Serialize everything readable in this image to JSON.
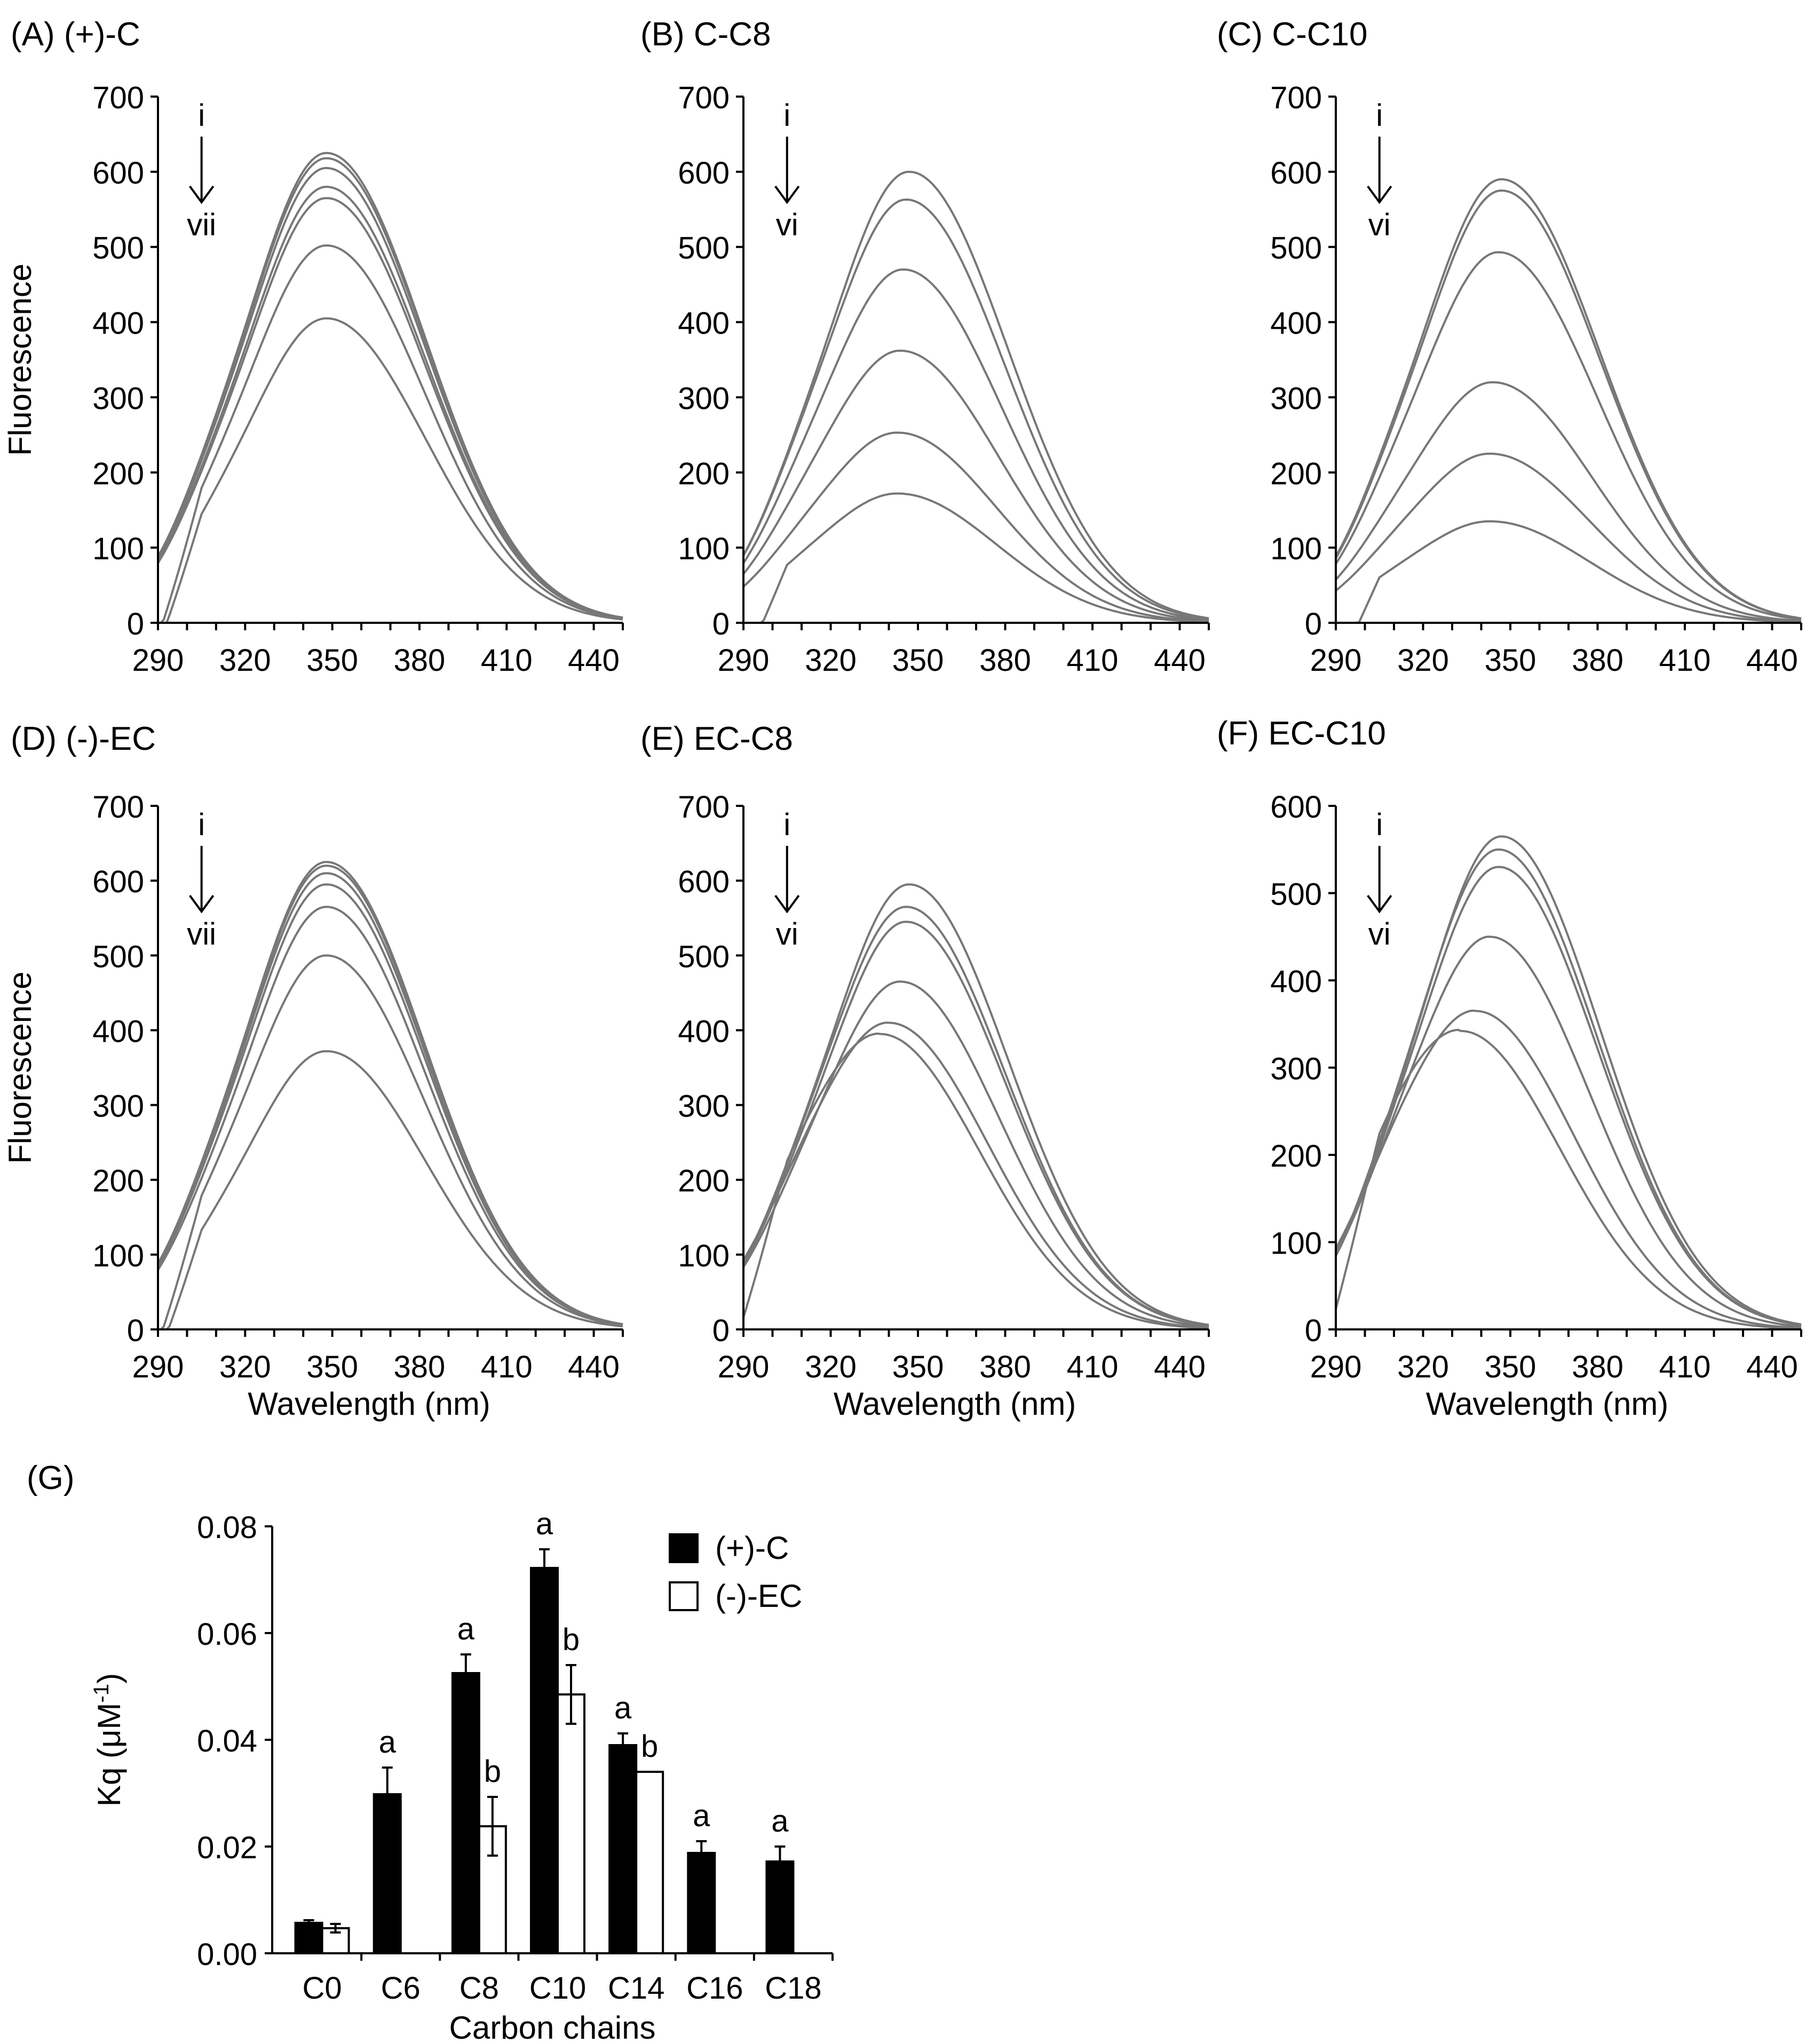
{
  "chart_data": [
    {
      "panel": "A",
      "type": "line",
      "title": "(A) (+)-C",
      "xlabel": "",
      "ylabel": "Fluorescence",
      "xlim": [
        290,
        450
      ],
      "ylim": [
        0,
        700
      ],
      "xticks": [
        290,
        320,
        350,
        380,
        410,
        440
      ],
      "yticks": [
        0,
        100,
        200,
        300,
        400,
        500,
        600,
        700
      ],
      "annotation": {
        "from": "i",
        "to": "vii"
      },
      "series": [
        {
          "peak_x": 348,
          "peak_y": 625
        },
        {
          "peak_x": 348,
          "peak_y": 618
        },
        {
          "peak_x": 348,
          "peak_y": 605
        },
        {
          "peak_x": 348,
          "peak_y": 580
        },
        {
          "peak_x": 348,
          "peak_y": 565
        },
        {
          "peak_x": 348,
          "peak_y": 502
        },
        {
          "peak_x": 348,
          "peak_y": 405
        }
      ]
    },
    {
      "panel": "B",
      "type": "line",
      "title": "(B) C-C8",
      "xlabel": "",
      "ylabel": "",
      "xlim": [
        290,
        450
      ],
      "ylim": [
        0,
        700
      ],
      "xticks": [
        290,
        320,
        350,
        380,
        410,
        440
      ],
      "yticks": [
        0,
        100,
        200,
        300,
        400,
        500,
        600,
        700
      ],
      "annotation": {
        "from": "i",
        "to": "vi"
      },
      "series": [
        {
          "peak_x": 347,
          "peak_y": 600
        },
        {
          "peak_x": 346,
          "peak_y": 563
        },
        {
          "peak_x": 345,
          "peak_y": 470
        },
        {
          "peak_x": 344,
          "peak_y": 362
        },
        {
          "peak_x": 343,
          "peak_y": 253
        },
        {
          "peak_x": 343,
          "peak_y": 172
        }
      ]
    },
    {
      "panel": "C",
      "type": "line",
      "title": "(C) C-C10",
      "xlabel": "",
      "ylabel": "",
      "xlim": [
        290,
        450
      ],
      "ylim": [
        0,
        700
      ],
      "xticks": [
        290,
        320,
        350,
        380,
        410,
        440
      ],
      "yticks": [
        0,
        100,
        200,
        300,
        400,
        500,
        600,
        700
      ],
      "annotation": {
        "from": "i",
        "to": "vi"
      },
      "series": [
        {
          "peak_x": 347,
          "peak_y": 590
        },
        {
          "peak_x": 347,
          "peak_y": 575
        },
        {
          "peak_x": 346,
          "peak_y": 493
        },
        {
          "peak_x": 344,
          "peak_y": 320
        },
        {
          "peak_x": 343,
          "peak_y": 225
        },
        {
          "peak_x": 343,
          "peak_y": 135
        }
      ]
    },
    {
      "panel": "D",
      "type": "line",
      "title": "(D) (-)-EC",
      "xlabel": "Wavelength (nm)",
      "ylabel": "Fluorescence",
      "xlim": [
        290,
        450
      ],
      "ylim": [
        0,
        700
      ],
      "xticks": [
        290,
        320,
        350,
        380,
        410,
        440
      ],
      "yticks": [
        0,
        100,
        200,
        300,
        400,
        500,
        600,
        700
      ],
      "annotation": {
        "from": "i",
        "to": "vii"
      },
      "series": [
        {
          "peak_x": 348,
          "peak_y": 625
        },
        {
          "peak_x": 348,
          "peak_y": 620
        },
        {
          "peak_x": 348,
          "peak_y": 610
        },
        {
          "peak_x": 348,
          "peak_y": 595
        },
        {
          "peak_x": 348,
          "peak_y": 565
        },
        {
          "peak_x": 348,
          "peak_y": 500
        },
        {
          "peak_x": 348,
          "peak_y": 372
        }
      ]
    },
    {
      "panel": "E",
      "type": "line",
      "title": "(E) EC-C8",
      "xlabel": "Wavelength (nm)",
      "ylabel": "",
      "xlim": [
        290,
        450
      ],
      "ylim": [
        0,
        700
      ],
      "xticks": [
        290,
        320,
        350,
        380,
        410,
        440
      ],
      "yticks": [
        0,
        100,
        200,
        300,
        400,
        500,
        600,
        700
      ],
      "annotation": {
        "from": "i",
        "to": "vi"
      },
      "series": [
        {
          "peak_x": 347,
          "peak_y": 595
        },
        {
          "peak_x": 346,
          "peak_y": 565
        },
        {
          "peak_x": 346,
          "peak_y": 545
        },
        {
          "peak_x": 344,
          "peak_y": 465
        },
        {
          "peak_x": 340,
          "peak_y": 410
        },
        {
          "peak_x": 337,
          "peak_y": 395
        }
      ]
    },
    {
      "panel": "F",
      "type": "line",
      "title": "(F) EC-C10",
      "xlabel": "Wavelength (nm)",
      "ylabel": "",
      "xlim": [
        290,
        450
      ],
      "ylim": [
        0,
        600
      ],
      "xticks": [
        290,
        320,
        350,
        380,
        410,
        440
      ],
      "yticks": [
        0,
        100,
        200,
        300,
        400,
        500,
        600
      ],
      "annotation": {
        "from": "i",
        "to": "vi"
      },
      "series": [
        {
          "peak_x": 347,
          "peak_y": 565
        },
        {
          "peak_x": 346,
          "peak_y": 550
        },
        {
          "peak_x": 346,
          "peak_y": 530
        },
        {
          "peak_x": 343,
          "peak_y": 450
        },
        {
          "peak_x": 338,
          "peak_y": 365
        },
        {
          "peak_x": 333,
          "peak_y": 342
        }
      ]
    },
    {
      "panel": "G",
      "type": "bar",
      "title": "(G)",
      "xlabel": "Carbon chains",
      "ylabel": "Kq (μM⁻¹)",
      "ylabel_main": "Kq (μM",
      "ylabel_sup": "-1",
      "ylabel_close": ")",
      "ylim": [
        0,
        0.08
      ],
      "yticks": [
        "0.00",
        "0.02",
        "0.04",
        "0.06",
        "0.08"
      ],
      "categories": [
        "C0",
        "C6",
        "C8",
        "C10",
        "C14",
        "C16",
        "C18"
      ],
      "legend_position": "top-right",
      "series": [
        {
          "name": "(+)-C",
          "color": "#000000",
          "values": [
            0.0057,
            0.0298,
            0.0525,
            0.0722,
            0.039,
            0.0188,
            0.0172
          ],
          "errors": [
            0.0005,
            0.005,
            0.0035,
            0.0035,
            0.0022,
            0.0022,
            0.0028
          ],
          "letters": [
            "",
            "a",
            "a",
            "a",
            "a",
            "a",
            "a"
          ]
        },
        {
          "name": "(-)-EC",
          "color": "#ffffff",
          "values": [
            0.0047,
            null,
            0.0238,
            0.0485,
            0.034,
            null,
            null
          ],
          "errors": [
            0.0008,
            null,
            0.0055,
            0.0055,
            0,
            null,
            null
          ],
          "letters": [
            "",
            "",
            "b",
            "b",
            "b",
            "",
            ""
          ]
        }
      ]
    }
  ]
}
